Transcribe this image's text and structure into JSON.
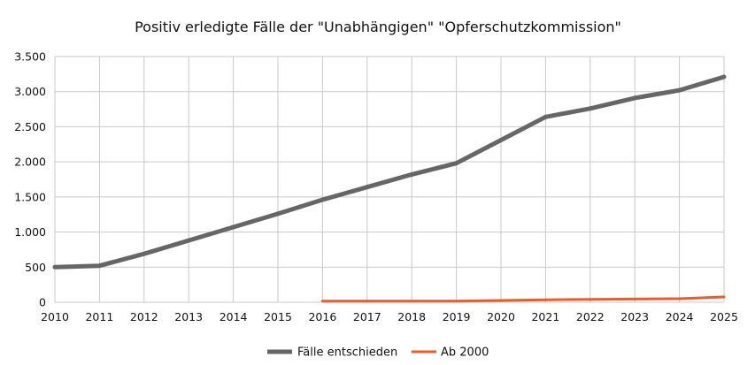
{
  "chart_data": {
    "type": "line",
    "title": "Positiv erledigte Fälle der \"Unabhängigen\" \"Opferschutzkommission\"",
    "xlabel": "",
    "ylabel": "",
    "x": [
      2010,
      2011,
      2012,
      2013,
      2014,
      2015,
      2016,
      2017,
      2018,
      2019,
      2020,
      2021,
      2022,
      2023,
      2024,
      2025
    ],
    "x_tick_labels": [
      "2010",
      "2011",
      "2012",
      "2013",
      "2014",
      "2015",
      "2016",
      "2017",
      "2018",
      "2019",
      "2020",
      "2021",
      "2022",
      "2023",
      "2024",
      "2025"
    ],
    "xlim": [
      2010,
      2025
    ],
    "ylim": [
      0,
      3500
    ],
    "y_ticks": [
      0,
      500,
      1000,
      1500,
      2000,
      2500,
      3000,
      3500
    ],
    "y_tick_labels": [
      "0",
      "500",
      "1.000",
      "1.500",
      "2.000",
      "2.500",
      "3.000",
      "3.500"
    ],
    "grid": "on",
    "legend_position": "bottom",
    "series": [
      {
        "name": "Fälle entschieden",
        "color": "#666666",
        "x": [
          2010,
          2011,
          2012,
          2013,
          2014,
          2015,
          2016,
          2017,
          2018,
          2019,
          2020,
          2021,
          2022,
          2023,
          2024,
          2025
        ],
        "values": [
          500,
          520,
          690,
          880,
          1070,
          1260,
          1460,
          1640,
          1820,
          1980,
          2310,
          2640,
          2760,
          2910,
          3020,
          3210
        ]
      },
      {
        "name": "Ab 2000",
        "color": "#f05a28",
        "x": [
          2016,
          2017,
          2018,
          2019,
          2020,
          2021,
          2022,
          2023,
          2024,
          2025
        ],
        "values": [
          15,
          15,
          15,
          15,
          25,
          35,
          40,
          45,
          50,
          75
        ]
      }
    ]
  }
}
